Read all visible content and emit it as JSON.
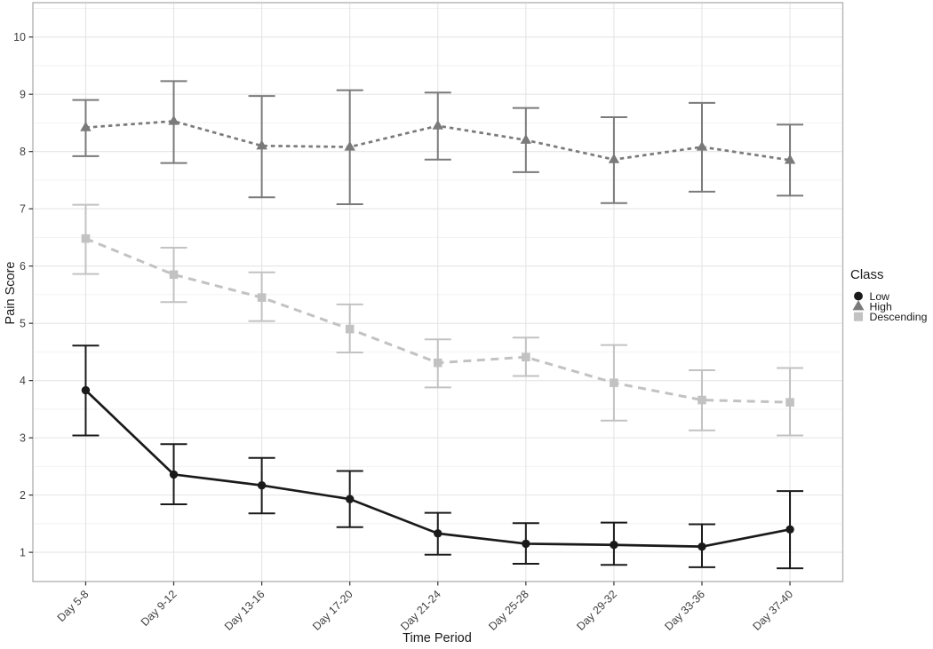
{
  "chart_data": {
    "type": "line",
    "title": "",
    "xlabel": "Time Period",
    "ylabel": "Pain Score",
    "legend_title": "Class",
    "legend_position": "right",
    "grid": "horizontal major+minor gridlines, vertical gridline per category",
    "categories": [
      "Day 5-8",
      "Day 9-12",
      "Day 13-16",
      "Day 17-20",
      "Day 21-24",
      "Day 25-28",
      "Day 29-32",
      "Day 33-36",
      "Day 37-40"
    ],
    "y_ticks": [
      1,
      2,
      3,
      4,
      5,
      6,
      7,
      8,
      9,
      10
    ],
    "ylim": [
      0.49,
      10.6
    ],
    "error_bars": true,
    "series": [
      {
        "name": "Low",
        "marker": "circle",
        "line_style": "solid",
        "color": "#1a1a1a",
        "values": [
          3.83,
          2.36,
          2.17,
          1.93,
          1.33,
          1.15,
          1.13,
          1.1,
          1.4
        ],
        "error_low": [
          3.04,
          1.84,
          1.68,
          1.44,
          0.96,
          0.8,
          0.78,
          0.74,
          0.72
        ],
        "error_high": [
          4.61,
          2.89,
          2.65,
          2.42,
          1.69,
          1.51,
          1.52,
          1.49,
          2.07
        ]
      },
      {
        "name": "High",
        "marker": "triangle",
        "line_style": "dotted",
        "color": "#7a7a7a",
        "values": [
          8.42,
          8.53,
          8.1,
          8.08,
          8.45,
          8.2,
          7.86,
          8.08,
          7.85
        ],
        "error_low": [
          7.92,
          7.8,
          7.2,
          7.08,
          7.86,
          7.64,
          7.1,
          7.3,
          7.23
        ],
        "error_high": [
          8.9,
          9.23,
          8.97,
          9.07,
          9.03,
          8.76,
          8.6,
          8.85,
          8.47
        ]
      },
      {
        "name": "Descending",
        "marker": "square",
        "line_style": "dashed",
        "color": "#c2c2c2",
        "values": [
          6.48,
          5.85,
          5.45,
          4.9,
          4.31,
          4.41,
          3.96,
          3.66,
          3.62
        ],
        "error_low": [
          5.86,
          5.37,
          5.04,
          4.49,
          3.88,
          4.08,
          3.3,
          3.13,
          3.04
        ],
        "error_high": [
          7.07,
          6.32,
          5.89,
          5.33,
          4.72,
          4.75,
          4.62,
          4.18,
          4.22
        ]
      }
    ]
  }
}
